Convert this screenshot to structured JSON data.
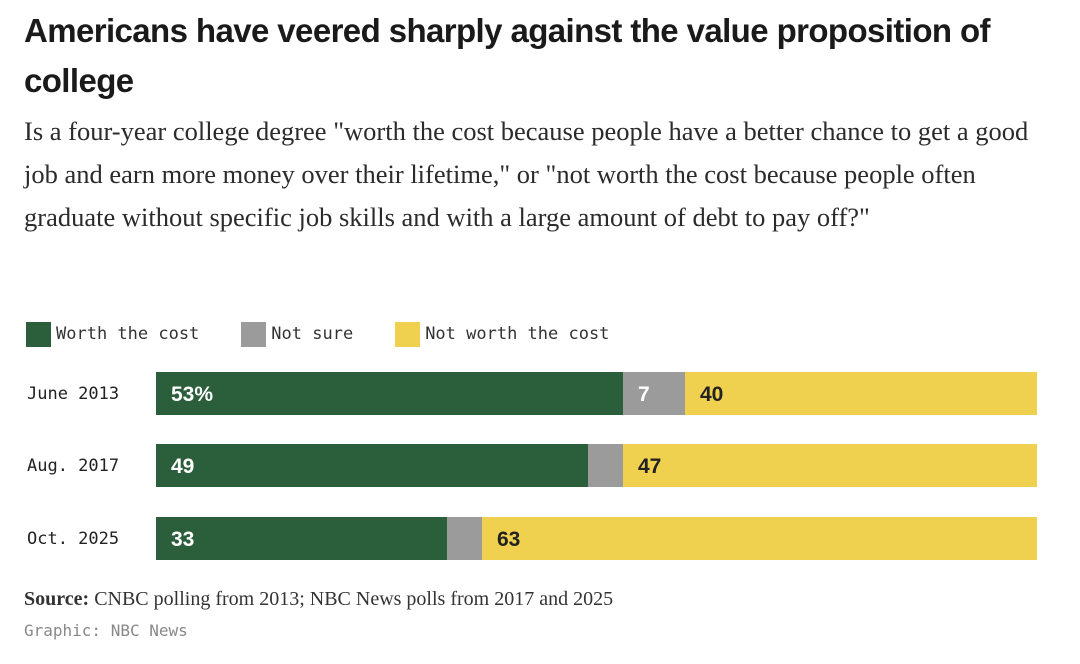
{
  "title": "Americans have veered sharply against the value proposition of college",
  "subtitle": "Is a four-year college degree \"worth the cost because people have a better chance to get a good job and earn more money over their lifetime,\" or \"not worth the cost because people often graduate without specific job skills and with a large amount of debt to pay off?\"",
  "colors": {
    "worth": "#2b5e3a",
    "not_sure": "#9b9b9b",
    "not_worth": "#f0d04f"
  },
  "chart_data": {
    "type": "bar",
    "orientation": "horizontal",
    "stacked": true,
    "categories": [
      "June 2013",
      "Aug. 2017",
      "Oct. 2025"
    ],
    "series": [
      {
        "name": "Worth the cost",
        "values": [
          53,
          49,
          33
        ],
        "labels": [
          "53%",
          "49",
          "33"
        ]
      },
      {
        "name": "Not sure",
        "values": [
          7,
          4,
          4
        ],
        "labels": [
          "7",
          "",
          ""
        ]
      },
      {
        "name": "Not worth the cost",
        "values": [
          40,
          47,
          63
        ],
        "labels": [
          "40",
          "47",
          "63"
        ]
      }
    ],
    "xlim": [
      0,
      100
    ],
    "legend": "top-left"
  },
  "source": {
    "label": "Source:",
    "text": " CNBC polling from 2013; NBC News polls from 2017 and 2025"
  },
  "credit": "Graphic: NBC News"
}
